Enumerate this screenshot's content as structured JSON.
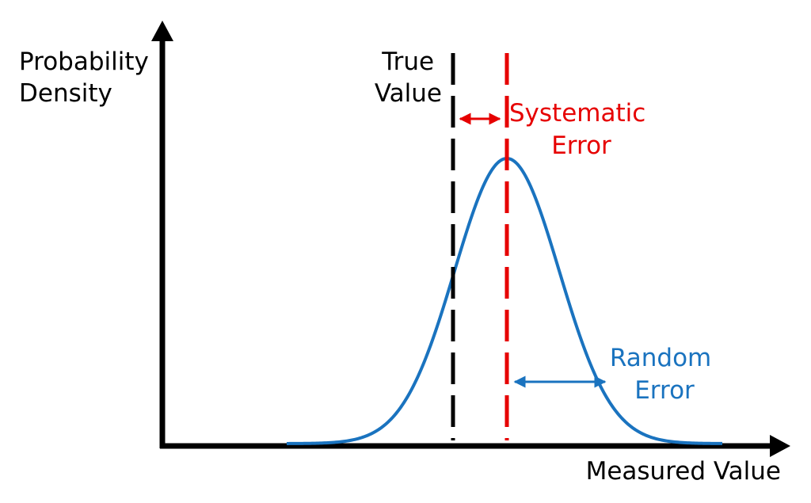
{
  "axes": {
    "y_label_lines": [
      "Probability",
      "Density"
    ],
    "x_label": "Measured Value"
  },
  "true_value": {
    "label_lines": [
      "True",
      "Value"
    ]
  },
  "systematic_error": {
    "label_lines": [
      "Systematic",
      "Error"
    ]
  },
  "random_error": {
    "label_lines": [
      "Random",
      "Error"
    ]
  },
  "colors": {
    "axis": "#000000",
    "true_value_line": "#000000",
    "mean_line": "#e60000",
    "systematic_text": "#e60000",
    "curve": "#1a73bf",
    "random_text": "#1a73bf"
  }
}
